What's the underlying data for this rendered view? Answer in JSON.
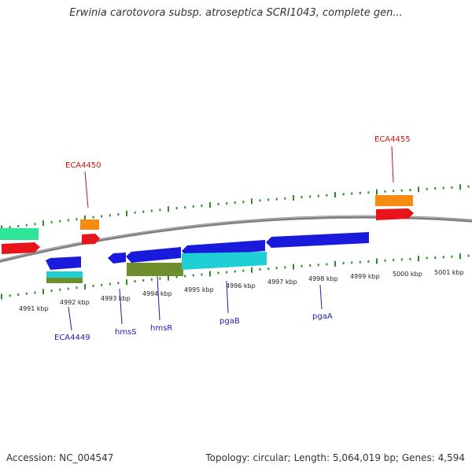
{
  "title": "Erwinia carotovora subsp. atroseptica SCRI1043, complete gen...",
  "accession_label": "Accession: NC_004547",
  "summary_label": "Topology: circular; Length: 5,064,019 bp; Genes: 4,594",
  "colors": {
    "backbone": "#7f7f7f",
    "tick": "#2e8b2e",
    "label_blue": "#1c1cb4",
    "label_red": "#cc1111",
    "gene_blue": "#1a1adc",
    "gene_red": "#e8141c",
    "gene_orange": "#f58c0f",
    "gene_green": "#2ee59a",
    "gene_cyan": "#1ecfd6",
    "gene_olive": "#6f8f2c"
  },
  "scale_labels": [
    "4991 kbp",
    "4992 kbp",
    "4993 kbp",
    "4994 kbp",
    "4995 kbp",
    "4996 kbp",
    "4997 kbp",
    "4998 kbp",
    "4999 kbp",
    "5000 kbp",
    "5001 kbp"
  ],
  "gene_labels": [
    {
      "text": "ECA4449",
      "color": "blue"
    },
    {
      "text": "hmsS",
      "color": "blue"
    },
    {
      "text": "hmsR",
      "color": "blue"
    },
    {
      "text": "pgaB",
      "color": "blue"
    },
    {
      "text": "pgaA",
      "color": "blue"
    },
    {
      "text": "ECA4450",
      "color": "red"
    },
    {
      "text": "ECA4455",
      "color": "red"
    }
  ]
}
